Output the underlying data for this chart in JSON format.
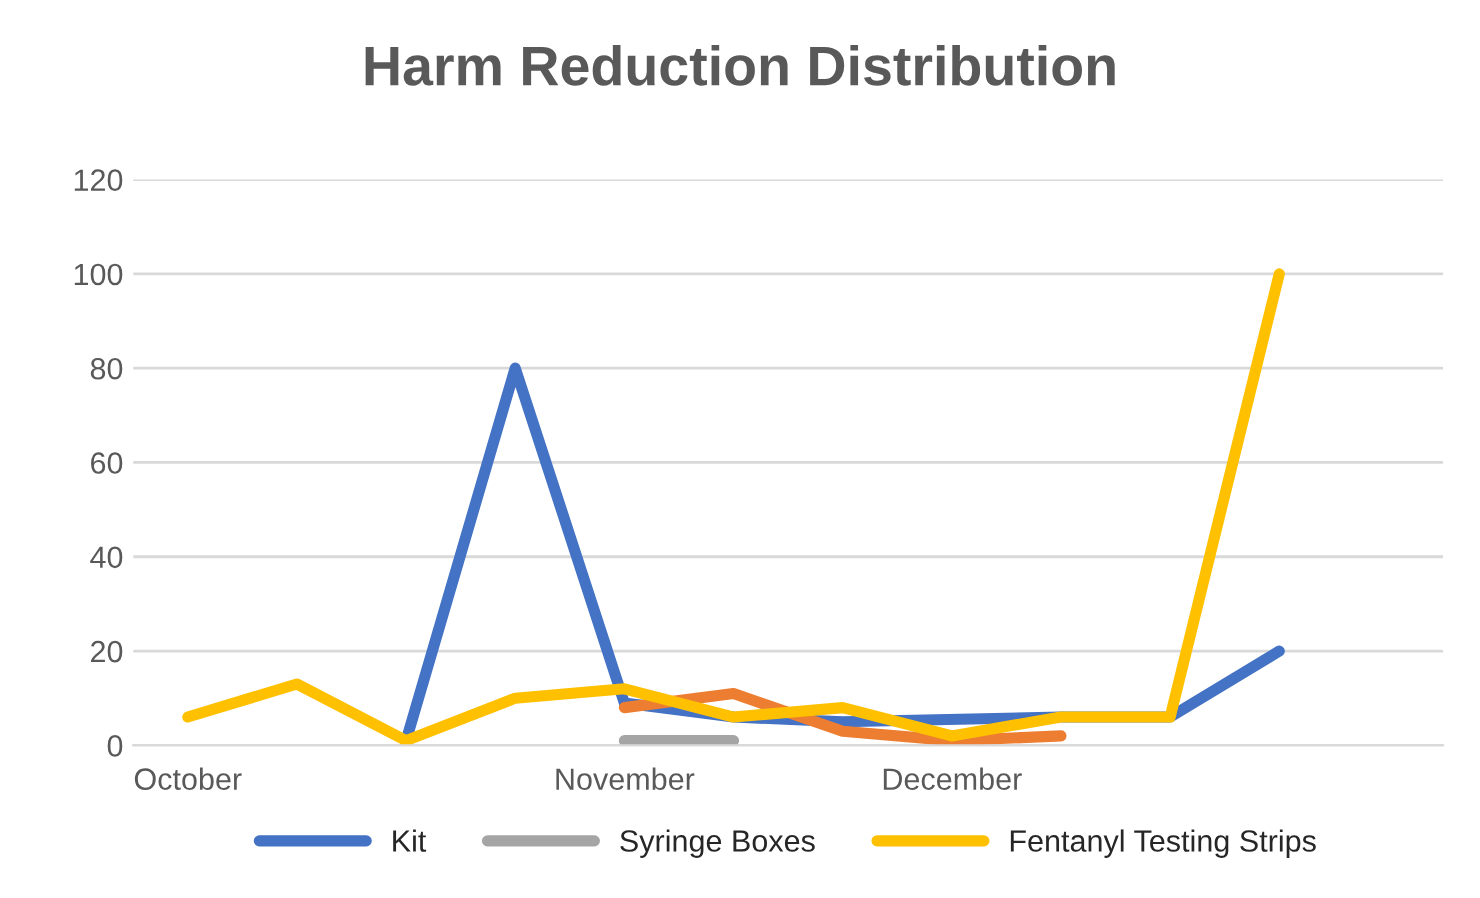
{
  "chart_data": {
    "type": "line",
    "title": "Harm Reduction Distribution",
    "categories": [
      "October",
      null,
      null,
      null,
      "November",
      null,
      null,
      "December",
      null,
      null,
      null,
      null
    ],
    "series": [
      {
        "name": "Kit",
        "color": "#4472c4",
        "values": [
          null,
          null,
          1,
          80,
          9,
          6,
          5,
          null,
          6,
          6,
          20,
          null
        ]
      },
      {
        "color": "#ed7d31",
        "values": [
          null,
          null,
          null,
          null,
          8,
          11,
          3,
          1,
          2,
          null,
          null,
          null
        ]
      },
      {
        "name": "Syringe Boxes",
        "color": "#a5a5a5",
        "values": [
          null,
          null,
          null,
          null,
          1,
          1,
          null,
          null,
          null,
          null,
          null,
          null
        ]
      },
      {
        "name": "Fentanyl Testing Strips",
        "color": "#ffc000",
        "values": [
          6,
          13,
          1,
          10,
          12,
          6,
          8,
          2,
          6,
          6,
          100,
          null
        ]
      }
    ],
    "ylim": [
      0,
      120
    ],
    "yticks": [
      0,
      20,
      40,
      60,
      80,
      100,
      120
    ],
    "grid": "y",
    "legend": "bottom",
    "marker": "none",
    "line_style": "solid"
  }
}
